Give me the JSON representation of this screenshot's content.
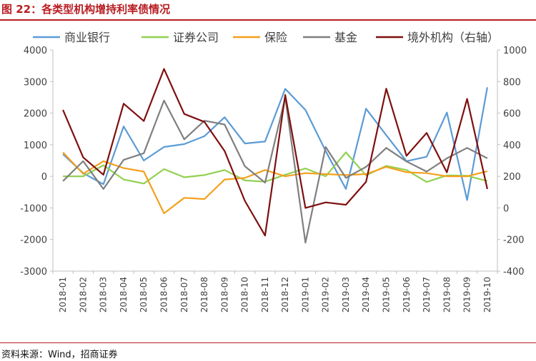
{
  "figure": {
    "title": "图 22：各类型机构增持利率债情况",
    "source": "资料来源：Wind，招商证券"
  },
  "colors": {
    "accent": "#b81d22",
    "axis": "#bfbfbf",
    "text": "#404040"
  },
  "chart_data": {
    "type": "line",
    "title": "",
    "xlabel": "",
    "ylabel": "",
    "ylim": [
      -3000,
      4000
    ],
    "y2lim": [
      -400,
      1000
    ],
    "yticks": [
      -3000,
      -2000,
      -1000,
      0,
      1000,
      2000,
      3000,
      4000
    ],
    "y2ticks": [
      -400,
      -200,
      0,
      200,
      400,
      600,
      800,
      1000
    ],
    "grid": false,
    "legend_position": "top",
    "x": [
      "2018-01",
      "2018-02",
      "2018-03",
      "2018-04",
      "2018-05",
      "2018-06",
      "2018-07",
      "2018-08",
      "2018-09",
      "2018-10",
      "2018-11",
      "2018-12",
      "2019-01",
      "2019-02",
      "2019-03",
      "2019-04",
      "2019-05",
      "2019-06",
      "2019-07",
      "2019-08",
      "2019-09",
      "2019-10"
    ],
    "series": [
      {
        "name": "商业银行",
        "axis": "left",
        "color": "#5b9bd5",
        "values": [
          700,
          100,
          -250,
          1580,
          500,
          930,
          1020,
          1270,
          1870,
          1040,
          1100,
          2770,
          2100,
          800,
          -400,
          2140,
          1300,
          480,
          620,
          2020,
          -750,
          2820
        ]
      },
      {
        "name": "证券公司",
        "axis": "left",
        "color": "#92d050",
        "values": [
          0,
          0,
          350,
          -100,
          -230,
          230,
          -30,
          40,
          200,
          -130,
          -170,
          50,
          250,
          0,
          760,
          30,
          330,
          200,
          -180,
          30,
          20,
          -150
        ]
      },
      {
        "name": "保险",
        "axis": "left",
        "color": "#f4a01c",
        "values": [
          760,
          80,
          480,
          260,
          150,
          -1170,
          -680,
          -720,
          -100,
          -50,
          200,
          0,
          100,
          70,
          40,
          70,
          300,
          130,
          100,
          0,
          0,
          160
        ]
      },
      {
        "name": "基金",
        "axis": "left",
        "color": "#7f7f7f",
        "values": [
          -150,
          480,
          -400,
          520,
          730,
          2400,
          1170,
          1760,
          1640,
          320,
          -200,
          2500,
          -2100,
          930,
          -50,
          300,
          900,
          470,
          150,
          570,
          900,
          570
        ]
      },
      {
        "name": "境外机构（右轴）",
        "axis": "right",
        "color": "#7f0f0f",
        "values": [
          620,
          320,
          210,
          660,
          550,
          880,
          595,
          545,
          360,
          45,
          -175,
          715,
          0,
          35,
          20,
          165,
          755,
          330,
          475,
          225,
          690,
          120
        ]
      }
    ]
  }
}
